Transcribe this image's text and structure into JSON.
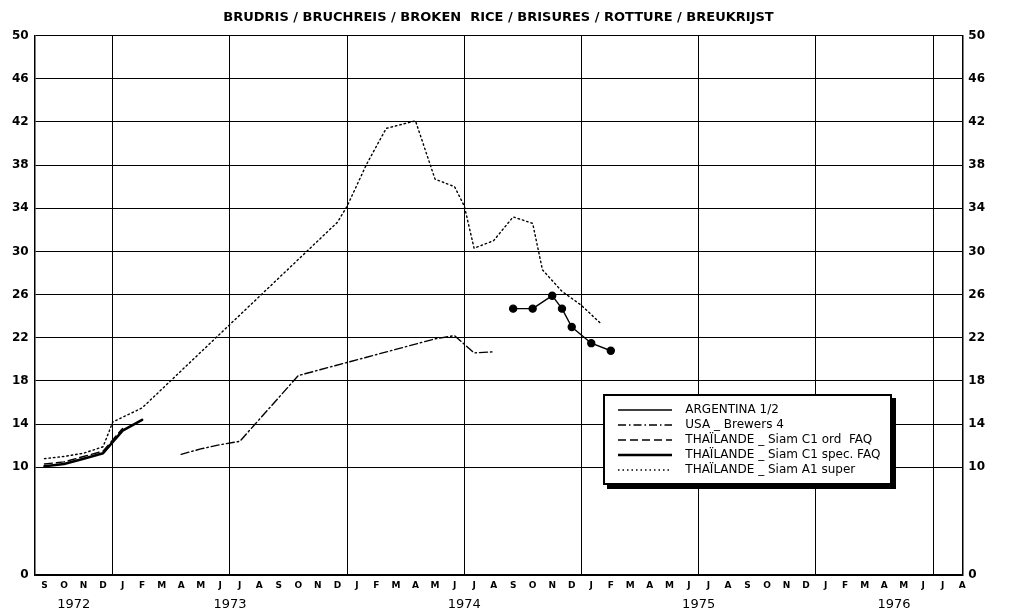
{
  "chart_data": {
    "type": "line",
    "title": "BRUDRIS / BRUCHREIS / BROKEN  RICE / BRISURES / ROTTURE / BREUKRIJST",
    "categories": [
      null,
      "S",
      null,
      "O",
      null,
      "N",
      null,
      "D",
      null,
      "J",
      null,
      "F",
      null,
      "M",
      null,
      "A",
      null,
      "M",
      null,
      "J",
      null,
      "J",
      null,
      "A",
      null,
      "S",
      null,
      "O",
      null,
      "N",
      null,
      "D",
      null,
      "J",
      null,
      "F",
      null,
      "M",
      null,
      "A",
      null,
      "M",
      null,
      "J",
      null,
      "J",
      null,
      "A",
      null,
      "S",
      null,
      "O",
      null,
      "N",
      null,
      "D",
      null,
      "J",
      null,
      "F",
      null,
      "M",
      null,
      "A",
      null,
      "M",
      null,
      "J",
      null,
      "J",
      null,
      "A",
      null,
      "S",
      null,
      "O",
      null,
      "N",
      null,
      "D",
      null,
      "J",
      null,
      "F",
      null,
      "M",
      null,
      "A",
      null,
      "M",
      null,
      "J",
      null,
      "J",
      null,
      "A"
    ],
    "annotations": [
      "1972",
      "1973",
      "1974",
      "1975",
      "1976"
    ],
    "ylim": [
      0,
      50
    ],
    "yticks": [
      0,
      10,
      14,
      18,
      22,
      26,
      30,
      34,
      38,
      42,
      46,
      50
    ],
    "y2lim": [
      0,
      50
    ],
    "y2ticks": [
      0,
      10,
      14,
      18,
      22,
      26,
      30,
      34,
      38,
      42,
      46,
      50
    ],
    "grid": true,
    "legend": "bottom right",
    "series": [
      {
        "name": "ARGENTINA 1/2",
        "color": "#000000",
        "line_style": "solid",
        "marker": "circle",
        "values": [
          null,
          null,
          null,
          null,
          null,
          null,
          null,
          null,
          null,
          null,
          null,
          null,
          null,
          null,
          null,
          null,
          null,
          null,
          null,
          null,
          null,
          null,
          null,
          null,
          null,
          null,
          null,
          null,
          null,
          null,
          null,
          null,
          null,
          null,
          null,
          null,
          null,
          null,
          null,
          null,
          null,
          null,
          null,
          null,
          null,
          null,
          null,
          null,
          null,
          24.7,
          null,
          24.7,
          null,
          25.9,
          24.7,
          23.0,
          null,
          21.5,
          null,
          20.8,
          null,
          null,
          null,
          null,
          null,
          null,
          null,
          null,
          null,
          null,
          null,
          null,
          null,
          null,
          null,
          null,
          null,
          null,
          null,
          null,
          null,
          null,
          null,
          null,
          null,
          null,
          null,
          null,
          null,
          null,
          null,
          null,
          null,
          null,
          null,
          null
        ]
      },
      {
        "name": "USA _ Brewers 4",
        "color": "#000000",
        "line_style": "dashdot",
        "marker": "none",
        "values": [
          null,
          null,
          null,
          null,
          null,
          null,
          null,
          null,
          null,
          null,
          null,
          null,
          null,
          null,
          null,
          11.2,
          null,
          11.7,
          null,
          12.1,
          null,
          12.4,
          null,
          null,
          null,
          null,
          null,
          18.5,
          null,
          null,
          null,
          null,
          null,
          null,
          null,
          null,
          null,
          null,
          null,
          null,
          null,
          21.9,
          null,
          22.2,
          null,
          20.6,
          null,
          20.7,
          null,
          null,
          null,
          null,
          null,
          null,
          null,
          null,
          null,
          null,
          null,
          null,
          null,
          null,
          null,
          null,
          null,
          null,
          null,
          null,
          null,
          null,
          null,
          null,
          null,
          null,
          null,
          null,
          null,
          null,
          null,
          null,
          null,
          null,
          null,
          null,
          null,
          null,
          null,
          null,
          null,
          null,
          null,
          null,
          null,
          null,
          null,
          null
        ]
      },
      {
        "name": "THAÏLANDE _ Siam C1 ord  FAQ",
        "color": "#000000",
        "line_style": "dashed",
        "marker": "none",
        "values": [
          null,
          10.3,
          null,
          10.5,
          null,
          11.0,
          null,
          11.5,
          null,
          13.6,
          null,
          null,
          null,
          null,
          null,
          null,
          null,
          null,
          null,
          null,
          null,
          null,
          null,
          null,
          null,
          null,
          null,
          null,
          null,
          null,
          null,
          null,
          null,
          null,
          null,
          null,
          null,
          null,
          null,
          null,
          null,
          null,
          null,
          null,
          null,
          null,
          null,
          null,
          null,
          null,
          null,
          null,
          null,
          null,
          null,
          null,
          null,
          null,
          null,
          null,
          null,
          null,
          null,
          null,
          null,
          null,
          null,
          null,
          null,
          null,
          null,
          null,
          null,
          null,
          null,
          null,
          null,
          null,
          null,
          null,
          null,
          null,
          null,
          null,
          null,
          null,
          null,
          null,
          null,
          null,
          null,
          null,
          null,
          null,
          null,
          null
        ]
      },
      {
        "name": "THAÏLANDE _ Siam C1 spec. FAQ",
        "color": "#000000",
        "line_style": "solid",
        "marker": "none",
        "values": [
          null,
          10.1,
          null,
          10.3,
          null,
          10.8,
          null,
          11.3,
          null,
          13.4,
          null,
          14.4,
          null,
          null,
          null,
          null,
          null,
          null,
          null,
          null,
          null,
          null,
          null,
          null,
          null,
          null,
          null,
          null,
          null,
          null,
          null,
          null,
          null,
          null,
          null,
          null,
          null,
          null,
          null,
          null,
          null,
          null,
          null,
          null,
          null,
          null,
          null,
          null,
          null,
          null,
          null,
          null,
          null,
          null,
          null,
          null,
          null,
          null,
          null,
          null,
          null,
          null,
          null,
          null,
          null,
          null,
          null,
          null,
          null,
          null,
          null,
          null,
          null,
          null,
          null,
          null,
          null,
          null,
          null,
          null,
          null,
          null,
          null,
          null,
          null,
          null,
          null,
          null,
          null,
          null,
          null,
          null,
          null,
          null,
          null,
          null
        ]
      },
      {
        "name": "THAÏLANDE _ Siam A1 super",
        "color": "#000000",
        "line_style": "dotted",
        "marker": "none",
        "values": [
          null,
          10.8,
          null,
          11.0,
          null,
          11.3,
          null,
          11.9,
          14.2,
          null,
          null,
          15.5,
          null,
          null,
          null,
          null,
          null,
          null,
          null,
          null,
          null,
          null,
          null,
          null,
          null,
          null,
          null,
          null,
          null,
          null,
          null,
          32.7,
          34.2,
          null,
          38.1,
          null,
          41.4,
          null,
          null,
          42.1,
          null,
          36.7,
          null,
          36.0,
          34.2,
          30.3,
          null,
          31.0,
          null,
          33.2,
          null,
          32.6,
          28.3,
          null,
          26.3,
          null,
          25.0,
          null,
          23.3,
          null,
          null,
          null,
          null,
          null,
          null,
          null,
          null,
          null,
          null,
          null,
          null,
          null,
          null,
          null,
          null,
          null,
          null,
          null,
          null,
          null,
          null,
          null,
          null,
          null,
          null,
          null,
          null,
          null,
          null,
          null,
          null,
          null,
          null,
          null,
          null,
          null
        ]
      }
    ]
  }
}
